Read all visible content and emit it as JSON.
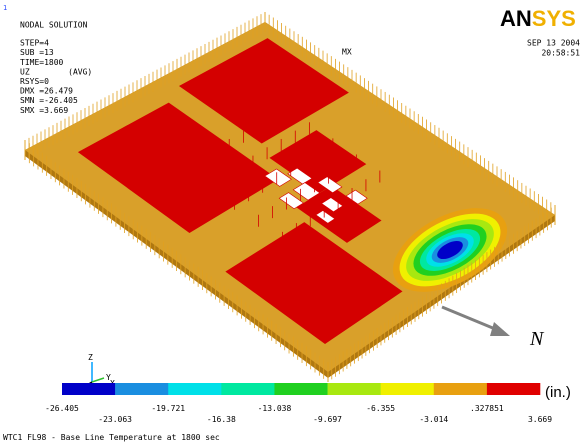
{
  "window_number": "1",
  "header": {
    "title": "NODAL SOLUTION",
    "lines": [
      "STEP=4",
      "SUB =13",
      "TIME=1800",
      "UZ        (AVG)",
      "RSYS=0",
      "DMX =26.479",
      "SMN =-26.405",
      "SMX =3.669"
    ]
  },
  "logo": [
    "AN",
    "SYS"
  ],
  "date": "SEP 13 2004",
  "time": "20:58:51",
  "max_marker": "MX",
  "north_label": "N",
  "triad": [
    "Z",
    "Y",
    "X"
  ],
  "legend": {
    "colors": [
      "#0000c8",
      "#1a8ee0",
      "#00e0e8",
      "#00e8a0",
      "#20d020",
      "#a8e810",
      "#f0f000",
      "#e8a010",
      "#e00000"
    ],
    "labels": [
      "-26.405",
      "-23.063",
      "-19.721",
      "-16.38",
      "-13.038",
      "-9.697",
      "-6.355",
      "-3.014",
      ".327851",
      "3.669"
    ],
    "unit": "(in.)"
  },
  "footer": "WTC1 FL98 - Base Line Temperature at 1800 sec"
}
